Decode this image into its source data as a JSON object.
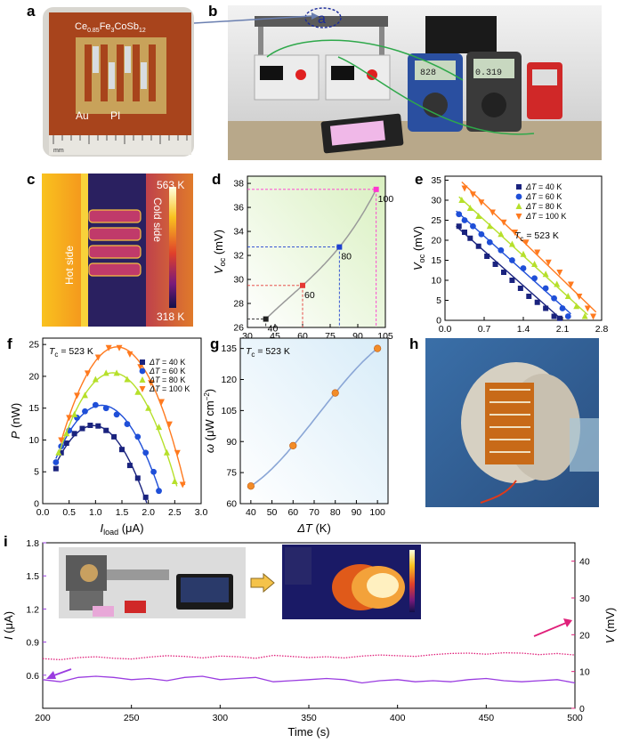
{
  "panel_labels": {
    "a": "a",
    "b": "b",
    "c": "c",
    "d": "d",
    "e": "e",
    "f": "f",
    "g": "g",
    "h": "h",
    "i": "i"
  },
  "photos": {
    "a": {
      "formula_pre": "Ce",
      "formula_sub1": "0.85",
      "formula_mid": "Fe",
      "formula_sub2": "3",
      "formula_post": "CoSb",
      "formula_sub3": "12",
      "au": "Au",
      "pi": "PI",
      "mm": "mm"
    },
    "b": {
      "circle_letter": "a",
      "meter1": "828",
      "meter2": "0.319"
    },
    "c": {
      "hot": "Hot side",
      "cold": "Cold side",
      "tmax": "563 K",
      "tmin": "318 K"
    }
  },
  "colors": {
    "s40": "#1a237e",
    "s60": "#1f4fd8",
    "s80": "#b6e02b",
    "s100": "#ff7a1f",
    "pink": "#e0207a",
    "purple": "#9a3ce0",
    "fit": "#8aa6d6",
    "orange": "#f28c28"
  },
  "chart_data": [
    {
      "id": "d",
      "type": "line",
      "xlabel_base": "ΔT",
      "xlabel_unit": "(K)",
      "ylabel_base": "V",
      "ylabel_sub": "oc",
      "ylabel_unit": "(mV)",
      "xlim": [
        30,
        105
      ],
      "ylim": [
        26,
        38.6
      ],
      "xticks": [
        "30",
        "45",
        "60",
        "75",
        "90",
        "105"
      ],
      "xtick_vals": [
        30,
        45,
        60,
        75,
        90,
        105
      ],
      "yticks": [
        "26",
        "28",
        "30",
        "32",
        "34",
        "36",
        "38"
      ],
      "ytick_vals": [
        26,
        28,
        30,
        32,
        34,
        36,
        38
      ],
      "x": [
        40,
        60,
        80,
        100
      ],
      "y": [
        26.7,
        29.5,
        32.7,
        37.5
      ],
      "point_labels": [
        "40",
        "60",
        "80",
        "100"
      ],
      "point_colors": [
        "#222222",
        "#e53935",
        "#1e40d0",
        "#ff35d0"
      ]
    },
    {
      "id": "e",
      "type": "scatter",
      "xlabel_base": "I",
      "xlabel_sub": "load",
      "xlabel_unit": "(μA)",
      "ylabel_base": "V",
      "ylabel_sub": "oc",
      "ylabel_unit": "(mV)",
      "xlim": [
        0,
        2.8
      ],
      "ylim": [
        0,
        36
      ],
      "xticks": [
        "0.0",
        "0.7",
        "1.4",
        "2.1",
        "2.8"
      ],
      "xtick_vals": [
        0,
        0.7,
        1.4,
        2.1,
        2.8
      ],
      "yticks": [
        "0",
        "5",
        "10",
        "15",
        "20",
        "25",
        "30",
        "35"
      ],
      "ytick_vals": [
        0,
        5,
        10,
        15,
        20,
        25,
        30,
        35
      ],
      "annotation_base": "T",
      "annotation_sub": "c",
      "annotation_rest": " = 523 K",
      "series": [
        {
          "name_base": "ΔT",
          "name_rest": " = 40 K",
          "marker": "square",
          "x": [
            0.25,
            0.35,
            0.45,
            0.6,
            0.75,
            0.9,
            1.05,
            1.2,
            1.35,
            1.5,
            1.65,
            1.8,
            1.95,
            2.05
          ],
          "y": [
            23.5,
            22,
            20.5,
            18.5,
            16,
            14,
            12,
            10,
            8,
            6,
            4.5,
            3,
            1,
            0.5
          ]
        },
        {
          "name_base": "ΔT",
          "name_rest": " = 60 K",
          "marker": "circle",
          "x": [
            0.25,
            0.35,
            0.5,
            0.65,
            0.8,
            1.0,
            1.2,
            1.4,
            1.6,
            1.8,
            1.95,
            2.1,
            2.2
          ],
          "y": [
            26.5,
            25,
            23.5,
            21.5,
            19.5,
            17.5,
            15,
            13,
            10.5,
            8,
            5.5,
            3,
            1
          ]
        },
        {
          "name_base": "ΔT",
          "name_rest": " = 80 K",
          "marker": "triangle-up",
          "x": [
            0.3,
            0.45,
            0.6,
            0.8,
            1.0,
            1.2,
            1.4,
            1.6,
            1.8,
            2.0,
            2.2,
            2.35,
            2.5
          ],
          "y": [
            30,
            28,
            26,
            23.5,
            21.5,
            19,
            16.5,
            14,
            11.5,
            9,
            6,
            3.5,
            1
          ]
        },
        {
          "name_base": "ΔT",
          "name_rest": " = 100 K",
          "marker": "triangle-down",
          "x": [
            0.35,
            0.5,
            0.65,
            0.85,
            1.05,
            1.25,
            1.45,
            1.65,
            1.85,
            2.05,
            2.25,
            2.4,
            2.55,
            2.65
          ],
          "y": [
            33,
            31.5,
            29.5,
            27,
            24.5,
            22,
            19.5,
            17,
            14.5,
            12,
            9,
            6,
            3,
            1
          ]
        }
      ]
    },
    {
      "id": "f",
      "type": "scatter",
      "xlabel_base": "I",
      "xlabel_sub": "load",
      "xlabel_unit": "(μA)",
      "ylabel_base": "P",
      "ylabel_unit": "(nW)",
      "xlim": [
        0,
        3.0
      ],
      "ylim": [
        0,
        26
      ],
      "xticks": [
        "0.0",
        "0.5",
        "1.0",
        "1.5",
        "2.0",
        "2.5",
        "3.0"
      ],
      "xtick_vals": [
        0,
        0.5,
        1,
        1.5,
        2,
        2.5,
        3
      ],
      "yticks": [
        "0",
        "5",
        "10",
        "15",
        "20",
        "25"
      ],
      "ytick_vals": [
        0,
        5,
        10,
        15,
        20,
        25
      ],
      "annotation_base": "T",
      "annotation_sub": "c",
      "annotation_rest": " = 523 K",
      "series": [
        {
          "name_base": "ΔT",
          "name_rest": " = 40 K",
          "marker": "square",
          "x": [
            0.25,
            0.35,
            0.45,
            0.6,
            0.75,
            0.9,
            1.05,
            1.2,
            1.35,
            1.5,
            1.65,
            1.8,
            1.95
          ],
          "y": [
            5.5,
            8,
            9.5,
            11,
            11.8,
            12.3,
            12.2,
            11.5,
            10.5,
            8.5,
            6,
            4,
            1
          ]
        },
        {
          "name_base": "ΔT",
          "name_rest": " = 60 K",
          "marker": "circle",
          "x": [
            0.25,
            0.35,
            0.5,
            0.65,
            0.8,
            1.0,
            1.2,
            1.4,
            1.6,
            1.8,
            1.95,
            2.1,
            2.2
          ],
          "y": [
            6.5,
            9,
            11.5,
            13.5,
            14.5,
            15.5,
            15,
            14,
            12.5,
            10.5,
            8,
            5,
            2
          ]
        },
        {
          "name_base": "ΔT",
          "name_rest": " = 80 K",
          "marker": "triangle-up",
          "x": [
            0.3,
            0.45,
            0.6,
            0.8,
            1.0,
            1.2,
            1.4,
            1.6,
            1.8,
            2.0,
            2.2,
            2.35,
            2.5
          ],
          "y": [
            8,
            11,
            14,
            17,
            19.5,
            20.5,
            20.5,
            19.5,
            17.5,
            15,
            12,
            8,
            3.5
          ]
        },
        {
          "name_base": "ΔT",
          "name_rest": " = 100 K",
          "marker": "triangle-down",
          "x": [
            0.35,
            0.5,
            0.65,
            0.85,
            1.05,
            1.25,
            1.45,
            1.65,
            1.85,
            2.05,
            2.25,
            2.4,
            2.55,
            2.65
          ],
          "y": [
            10,
            13.5,
            17,
            20.5,
            23,
            24.5,
            24.5,
            23.5,
            21.5,
            19,
            16,
            12.5,
            8,
            3
          ]
        }
      ]
    },
    {
      "id": "g",
      "type": "line",
      "xlabel_base": "ΔT",
      "xlabel_unit": "(K)",
      "ylabel_base": "ω",
      "ylabel_unit": "(μW cm",
      "ylabel_sup": "−2",
      "ylabel_close": ")",
      "xlim": [
        35,
        105
      ],
      "ylim": [
        60,
        140
      ],
      "xticks": [
        "40",
        "50",
        "60",
        "70",
        "80",
        "90",
        "100"
      ],
      "xtick_vals": [
        40,
        50,
        60,
        70,
        80,
        90,
        100
      ],
      "yticks": [
        "60",
        "75",
        "90",
        "105",
        "120",
        "135"
      ],
      "ytick_vals": [
        60,
        75,
        90,
        105,
        120,
        135
      ],
      "annotation_base": "T",
      "annotation_sub": "c",
      "annotation_rest": " = 523 K",
      "x": [
        40,
        60,
        80,
        100
      ],
      "y": [
        68.5,
        88,
        113.5,
        135
      ]
    },
    {
      "id": "i",
      "type": "line",
      "xlabel": "Time (s)",
      "ylabel_left_base": "I",
      "ylabel_left_unit": " (μA)",
      "ylabel_right_base": "V",
      "ylabel_right_unit": " (mV)",
      "xlim": [
        200,
        500
      ],
      "ylim_left": [
        0.3,
        1.8
      ],
      "ylim_right": [
        0,
        45
      ],
      "xticks": [
        "200",
        "250",
        "300",
        "350",
        "400",
        "450",
        "500"
      ],
      "xtick_vals": [
        200,
        250,
        300,
        350,
        400,
        450,
        500
      ],
      "yticks_left": [
        "0.6",
        "0.9",
        "1.2",
        "1.5",
        "1.8"
      ],
      "ytick_left_vals": [
        0.6,
        0.9,
        1.2,
        1.5,
        1.8
      ],
      "yticks_right": [
        "0",
        "10",
        "20",
        "30",
        "40"
      ],
      "ytick_right_vals": [
        0,
        10,
        20,
        30,
        40
      ],
      "series": [
        {
          "name": "I",
          "axis": "left",
          "x": [
            200,
            210,
            220,
            230,
            240,
            250,
            260,
            270,
            280,
            290,
            300,
            310,
            320,
            330,
            340,
            350,
            360,
            370,
            380,
            390,
            400,
            410,
            420,
            430,
            440,
            450,
            460,
            470,
            480,
            490,
            500
          ],
          "y": [
            0.56,
            0.54,
            0.58,
            0.59,
            0.58,
            0.56,
            0.57,
            0.55,
            0.58,
            0.59,
            0.56,
            0.57,
            0.58,
            0.54,
            0.55,
            0.56,
            0.57,
            0.56,
            0.53,
            0.55,
            0.56,
            0.54,
            0.55,
            0.54,
            0.56,
            0.57,
            0.55,
            0.54,
            0.55,
            0.56,
            0.53
          ]
        },
        {
          "name": "V",
          "axis": "right",
          "x": [
            200,
            210,
            220,
            230,
            240,
            250,
            260,
            270,
            280,
            290,
            300,
            310,
            320,
            330,
            340,
            350,
            360,
            370,
            380,
            390,
            400,
            410,
            420,
            430,
            440,
            450,
            460,
            470,
            480,
            490,
            500
          ],
          "y": [
            13.5,
            13.2,
            13.8,
            14.0,
            13.6,
            13.4,
            13.9,
            14.3,
            14.1,
            13.7,
            14.2,
            14.0,
            13.6,
            14.4,
            14.1,
            13.8,
            14.0,
            13.7,
            14.2,
            14.5,
            14.3,
            14.1,
            14.6,
            14.9,
            15.0,
            14.7,
            15.1,
            15.0,
            14.6,
            14.9,
            14.5
          ]
        }
      ]
    }
  ]
}
